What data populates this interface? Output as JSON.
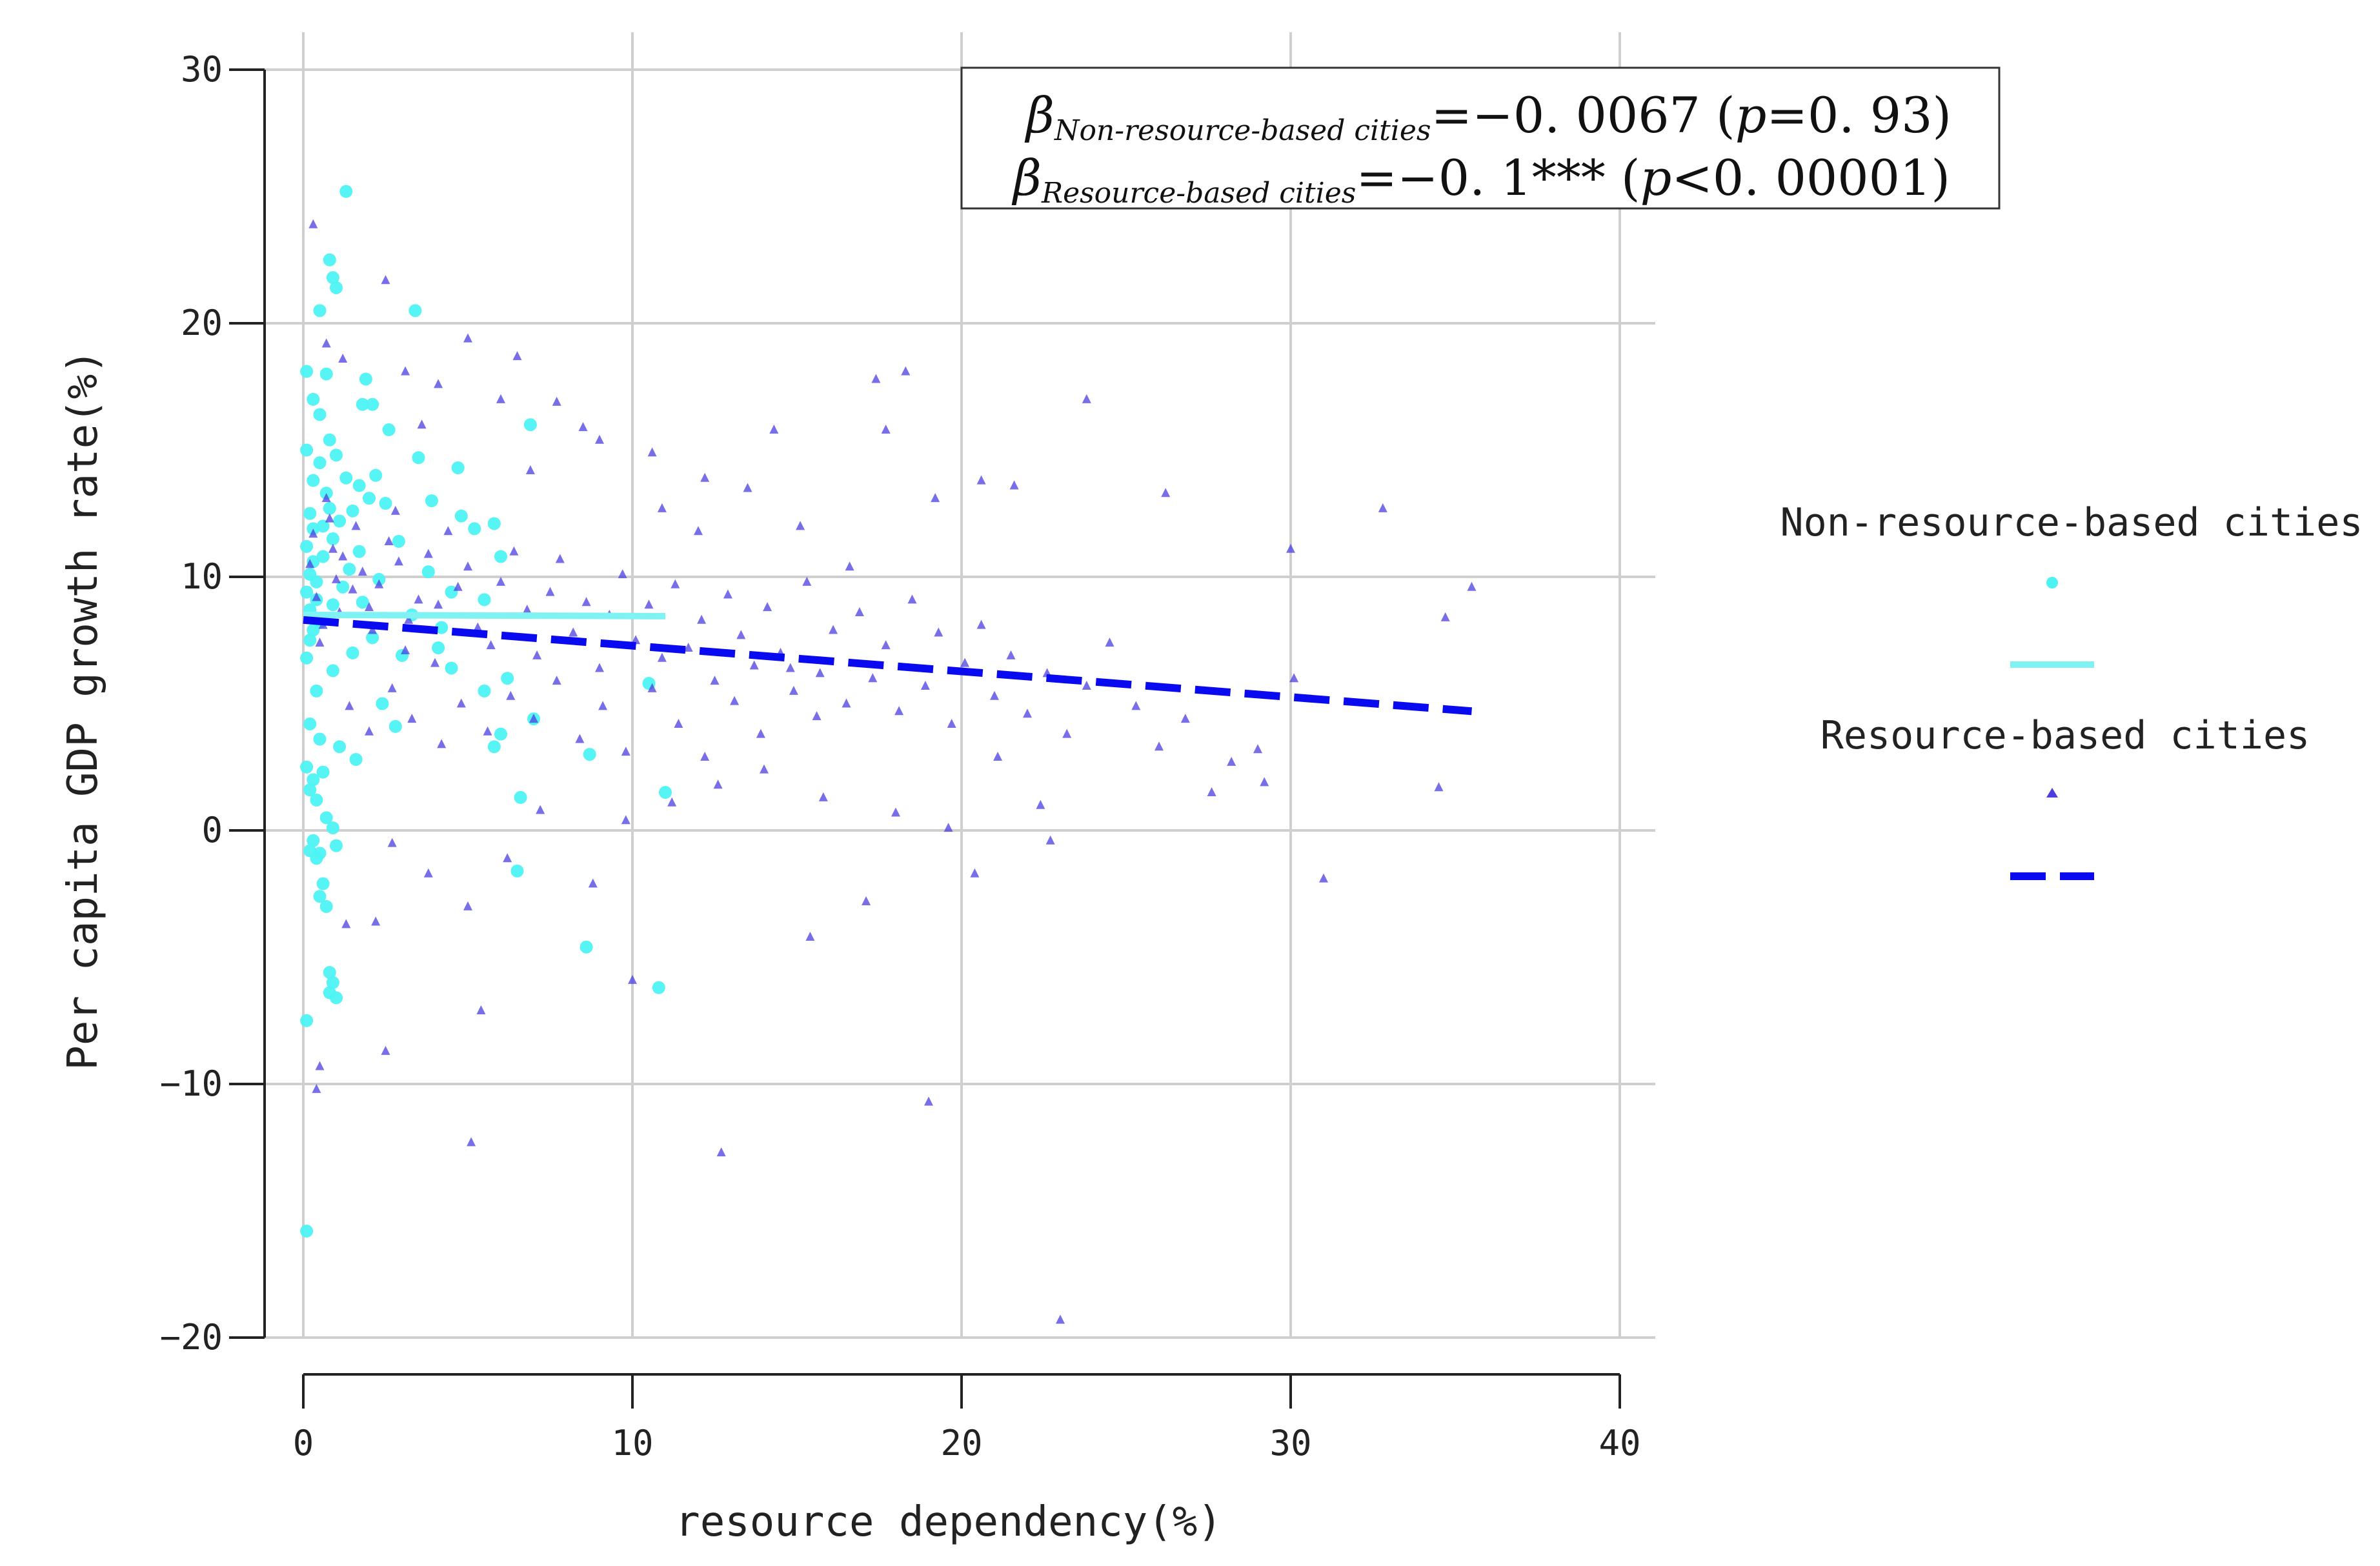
{
  "chart_data": {
    "type": "scatter",
    "title": "",
    "xlabel": "resource dependency(%)",
    "ylabel": "Per capita GDP growth rate(%)",
    "xlim": [
      0,
      40
    ],
    "ylim": [
      -20,
      30
    ],
    "x_ticks": [
      0,
      10,
      20,
      30,
      40
    ],
    "y_ticks": [
      -20,
      -10,
      0,
      10,
      20,
      30
    ],
    "x_tick_labels": [
      "0",
      "10",
      "20",
      "30",
      "40"
    ],
    "y_tick_labels": [
      "−20",
      "−10",
      "0",
      "10",
      "20",
      "30"
    ],
    "grid": true,
    "legend_position": "right",
    "annotation": {
      "line1": {
        "beta": "β",
        "sub": "Non-resource-based cities",
        "value": "=−0. 0067 (",
        "p": "p",
        "rest": "=0. 93)"
      },
      "line2": {
        "beta": "β",
        "sub": "Resource-based cities",
        "value": "=−0. 1*** (",
        "p": "p",
        "rest": "<0. 00001)"
      }
    },
    "series": [
      {
        "name": "Non-resource-based cities",
        "marker": "circle",
        "color": "#4DF3F3",
        "fit_line": {
          "style": "solid",
          "color": "#7FF3F3",
          "x": [
            0,
            11
          ],
          "y": [
            8.5,
            8.45
          ]
        },
        "points": [
          [
            0.2,
            12.5
          ],
          [
            0.3,
            13.8
          ],
          [
            0.1,
            11.2
          ],
          [
            0.4,
            9.8
          ],
          [
            0.2,
            8.7
          ],
          [
            0.5,
            14.5
          ],
          [
            0.1,
            15.0
          ],
          [
            0.3,
            10.6
          ],
          [
            0.6,
            12.0
          ],
          [
            0.2,
            7.5
          ],
          [
            0.1,
            6.8
          ],
          [
            0.4,
            9.1
          ],
          [
            0.7,
            13.3
          ],
          [
            0.3,
            11.9
          ],
          [
            0.2,
            10.1
          ],
          [
            0.5,
            8.2
          ],
          [
            0.8,
            12.7
          ],
          [
            0.1,
            9.4
          ],
          [
            0.3,
            7.9
          ],
          [
            0.6,
            10.8
          ],
          [
            0.9,
            11.5
          ],
          [
            1.1,
            12.2
          ],
          [
            1.3,
            13.9
          ],
          [
            1.0,
            14.8
          ],
          [
            0.8,
            15.4
          ],
          [
            1.5,
            12.6
          ],
          [
            1.7,
            11.0
          ],
          [
            2.0,
            13.1
          ],
          [
            1.2,
            9.6
          ],
          [
            0.9,
            8.9
          ],
          [
            1.4,
            10.3
          ],
          [
            2.2,
            14.0
          ],
          [
            2.5,
            12.9
          ],
          [
            1.8,
            9.0
          ],
          [
            2.1,
            7.6
          ],
          [
            0.4,
            5.5
          ],
          [
            0.2,
            4.2
          ],
          [
            0.5,
            3.6
          ],
          [
            0.1,
            2.5
          ],
          [
            0.3,
            2.0
          ],
          [
            0.2,
            1.6
          ],
          [
            0.6,
            2.3
          ],
          [
            0.4,
            1.2
          ],
          [
            0.7,
            0.5
          ],
          [
            0.3,
            -0.4
          ],
          [
            0.9,
            0.1
          ],
          [
            1.0,
            -0.6
          ],
          [
            0.5,
            -0.9
          ],
          [
            0.2,
            -0.8
          ],
          [
            0.4,
            -1.1
          ],
          [
            0.6,
            -2.1
          ],
          [
            0.5,
            -2.6
          ],
          [
            0.7,
            -3.0
          ],
          [
            0.8,
            -5.6
          ],
          [
            0.9,
            -6.0
          ],
          [
            0.8,
            -6.4
          ],
          [
            1.0,
            -6.6
          ],
          [
            0.1,
            -7.5
          ],
          [
            0.1,
            -15.8
          ],
          [
            1.3,
            25.2
          ],
          [
            0.8,
            22.5
          ],
          [
            0.9,
            21.8
          ],
          [
            1.0,
            21.4
          ],
          [
            0.5,
            20.5
          ],
          [
            3.4,
            20.5
          ],
          [
            0.1,
            18.1
          ],
          [
            0.7,
            18.0
          ],
          [
            1.9,
            17.8
          ],
          [
            0.3,
            17.0
          ],
          [
            0.5,
            16.4
          ],
          [
            1.8,
            16.8
          ],
          [
            2.1,
            16.8
          ],
          [
            2.6,
            15.8
          ],
          [
            3.5,
            14.7
          ],
          [
            3.9,
            13.0
          ],
          [
            4.7,
            14.3
          ],
          [
            4.8,
            12.4
          ],
          [
            5.2,
            11.9
          ],
          [
            5.8,
            12.1
          ],
          [
            6.0,
            10.8
          ],
          [
            5.5,
            9.1
          ],
          [
            4.5,
            9.4
          ],
          [
            4.1,
            7.2
          ],
          [
            4.5,
            6.4
          ],
          [
            5.5,
            5.5
          ],
          [
            6.2,
            6.0
          ],
          [
            6.0,
            3.8
          ],
          [
            5.8,
            3.3
          ],
          [
            6.6,
            1.3
          ],
          [
            6.5,
            -1.6
          ],
          [
            6.9,
            16.0
          ],
          [
            7.0,
            4.4
          ],
          [
            8.6,
            -4.6
          ],
          [
            8.7,
            3.0
          ],
          [
            10.5,
            5.8
          ],
          [
            11.0,
            1.5
          ],
          [
            10.8,
            -6.2
          ],
          [
            2.4,
            5.0
          ],
          [
            3.0,
            6.9
          ],
          [
            2.8,
            4.1
          ],
          [
            1.6,
            2.8
          ],
          [
            1.1,
            3.3
          ],
          [
            3.3,
            8.5
          ],
          [
            3.8,
            10.2
          ],
          [
            2.9,
            11.4
          ],
          [
            4.2,
            8.0
          ],
          [
            1.5,
            7.0
          ],
          [
            0.9,
            6.3
          ],
          [
            2.3,
            9.9
          ],
          [
            1.7,
            13.6
          ]
        ]
      },
      {
        "name": "Resource-based cities",
        "marker": "triangle",
        "color": "#4B3FE0",
        "fit_line": {
          "style": "dashed",
          "color": "#0A0AF0",
          "x": [
            0,
            35.5
          ],
          "y": [
            8.3,
            4.7
          ]
        },
        "points": [
          [
            0.2,
            10.5
          ],
          [
            0.4,
            9.2
          ],
          [
            0.6,
            8.1
          ],
          [
            0.3,
            11.7
          ],
          [
            0.8,
            12.3
          ],
          [
            1.0,
            9.9
          ],
          [
            0.5,
            7.4
          ],
          [
            1.2,
            10.8
          ],
          [
            0.7,
            13.1
          ],
          [
            1.5,
            9.5
          ],
          [
            1.1,
            8.6
          ],
          [
            0.9,
            11.1
          ],
          [
            1.8,
            10.2
          ],
          [
            2.0,
            8.8
          ],
          [
            1.6,
            12.0
          ],
          [
            2.3,
            9.7
          ],
          [
            2.6,
            11.4
          ],
          [
            2.1,
            7.9
          ],
          [
            2.9,
            10.6
          ],
          [
            3.2,
            8.3
          ],
          [
            2.8,
            12.6
          ],
          [
            3.5,
            9.1
          ],
          [
            3.8,
            10.9
          ],
          [
            3.1,
            7.1
          ],
          [
            4.1,
            8.9
          ],
          [
            4.4,
            11.8
          ],
          [
            4.0,
            6.6
          ],
          [
            4.7,
            9.6
          ],
          [
            5.0,
            10.4
          ],
          [
            5.3,
            8.0
          ],
          [
            5.7,
            7.3
          ],
          [
            6.0,
            9.8
          ],
          [
            6.4,
            11.0
          ],
          [
            6.8,
            8.7
          ],
          [
            7.1,
            6.9
          ],
          [
            7.5,
            9.4
          ],
          [
            7.8,
            10.7
          ],
          [
            8.2,
            7.8
          ],
          [
            8.6,
            9.0
          ],
          [
            9.0,
            6.4
          ],
          [
            9.3,
            8.5
          ],
          [
            9.7,
            10.1
          ],
          [
            10.1,
            7.5
          ],
          [
            10.5,
            8.9
          ],
          [
            10.9,
            6.8
          ],
          [
            11.3,
            9.7
          ],
          [
            11.7,
            7.2
          ],
          [
            12.1,
            8.3
          ],
          [
            12.5,
            5.9
          ],
          [
            12.9,
            9.3
          ],
          [
            13.3,
            7.7
          ],
          [
            13.7,
            6.5
          ],
          [
            14.1,
            8.8
          ],
          [
            14.5,
            7.0
          ],
          [
            14.9,
            5.5
          ],
          [
            15.3,
            9.8
          ],
          [
            15.7,
            6.2
          ],
          [
            16.1,
            7.9
          ],
          [
            16.5,
            5.0
          ],
          [
            16.9,
            8.6
          ],
          [
            17.3,
            6.0
          ],
          [
            17.7,
            7.3
          ],
          [
            18.1,
            4.7
          ],
          [
            18.5,
            9.1
          ],
          [
            18.9,
            5.7
          ],
          [
            19.3,
            7.8
          ],
          [
            19.7,
            4.2
          ],
          [
            20.1,
            6.6
          ],
          [
            20.6,
            8.1
          ],
          [
            21.0,
            5.3
          ],
          [
            21.5,
            6.9
          ],
          [
            22.0,
            4.6
          ],
          [
            22.6,
            6.2
          ],
          [
            23.2,
            3.8
          ],
          [
            23.8,
            5.7
          ],
          [
            24.5,
            7.4
          ],
          [
            25.3,
            4.9
          ],
          [
            26.0,
            3.3
          ],
          [
            26.8,
            4.4
          ],
          [
            27.6,
            1.5
          ],
          [
            28.2,
            2.7
          ],
          [
            29.0,
            3.2
          ],
          [
            29.2,
            1.9
          ],
          [
            30.1,
            6.0
          ],
          [
            30.0,
            11.1
          ],
          [
            31.0,
            -1.9
          ],
          [
            32.8,
            12.7
          ],
          [
            34.5,
            1.7
          ],
          [
            34.7,
            8.4
          ],
          [
            35.5,
            9.6
          ],
          [
            26.2,
            13.3
          ],
          [
            23.8,
            17.0
          ],
          [
            18.3,
            18.1
          ],
          [
            17.4,
            17.8
          ],
          [
            17.7,
            15.8
          ],
          [
            19.2,
            13.1
          ],
          [
            21.6,
            13.6
          ],
          [
            20.6,
            13.8
          ],
          [
            14.3,
            15.8
          ],
          [
            13.5,
            13.5
          ],
          [
            12.2,
            13.9
          ],
          [
            10.6,
            14.9
          ],
          [
            9.0,
            15.4
          ],
          [
            8.5,
            15.9
          ],
          [
            7.7,
            16.9
          ],
          [
            6.5,
            18.7
          ],
          [
            6.0,
            17.0
          ],
          [
            4.1,
            17.6
          ],
          [
            3.6,
            16.0
          ],
          [
            2.5,
            21.7
          ],
          [
            0.3,
            23.9
          ],
          [
            0.7,
            19.2
          ],
          [
            1.2,
            18.6
          ],
          [
            3.1,
            18.1
          ],
          [
            5.0,
            19.4
          ],
          [
            6.9,
            14.2
          ],
          [
            10.9,
            12.7
          ],
          [
            12.0,
            11.8
          ],
          [
            15.1,
            12.0
          ],
          [
            16.6,
            10.4
          ],
          [
            0.5,
            -9.3
          ],
          [
            0.4,
            -10.2
          ],
          [
            2.5,
            -8.7
          ],
          [
            5.4,
            -7.1
          ],
          [
            5.1,
            -12.3
          ],
          [
            8.8,
            -2.1
          ],
          [
            10.0,
            -5.9
          ],
          [
            12.7,
            -12.7
          ],
          [
            15.4,
            -4.2
          ],
          [
            17.1,
            -2.8
          ],
          [
            19.0,
            -10.7
          ],
          [
            20.4,
            -1.7
          ],
          [
            22.7,
            -0.4
          ],
          [
            23.0,
            -19.3
          ],
          [
            1.3,
            -3.7
          ],
          [
            2.2,
            -3.6
          ],
          [
            2.7,
            -0.5
          ],
          [
            3.8,
            -1.7
          ],
          [
            5.0,
            -3.0
          ],
          [
            6.2,
            -1.1
          ],
          [
            7.2,
            0.8
          ],
          [
            9.8,
            0.4
          ],
          [
            11.2,
            1.1
          ],
          [
            12.6,
            1.8
          ],
          [
            14.0,
            2.4
          ],
          [
            15.8,
            1.3
          ],
          [
            18.0,
            0.7
          ],
          [
            19.6,
            0.1
          ],
          [
            21.1,
            2.9
          ],
          [
            22.4,
            1.0
          ],
          [
            1.4,
            4.9
          ],
          [
            2.0,
            3.9
          ],
          [
            2.7,
            5.6
          ],
          [
            3.3,
            4.4
          ],
          [
            4.2,
            3.4
          ],
          [
            4.8,
            5.0
          ],
          [
            5.6,
            3.9
          ],
          [
            6.3,
            5.3
          ],
          [
            7.0,
            4.4
          ],
          [
            7.7,
            5.9
          ],
          [
            8.4,
            3.6
          ],
          [
            9.1,
            4.9
          ],
          [
            9.8,
            3.1
          ],
          [
            10.6,
            5.6
          ],
          [
            11.4,
            4.2
          ],
          [
            12.2,
            2.9
          ],
          [
            13.1,
            5.1
          ],
          [
            13.9,
            3.8
          ],
          [
            14.8,
            6.4
          ],
          [
            15.6,
            4.5
          ]
        ]
      }
    ]
  }
}
